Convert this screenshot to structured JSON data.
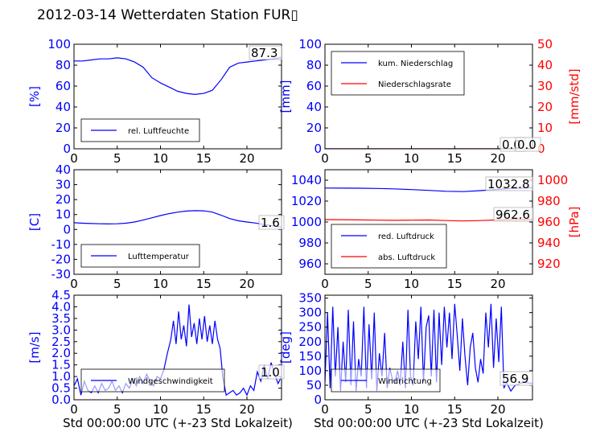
{
  "title": "2012-03-14 Wetterdaten Station FUR▯",
  "colors": {
    "left_axis": "#0000ff",
    "right_axis": "#ff0000",
    "series_blue": "#0000ff",
    "series_red": "#ff0000",
    "frame": "#000000"
  },
  "chart_data": [
    {
      "id": "humidity",
      "type": "line",
      "ylabel": "[%]",
      "xlim": [
        0,
        24
      ],
      "ylim": [
        0,
        100
      ],
      "xticks": [
        0,
        5,
        10,
        15,
        20
      ],
      "yticks": [
        0,
        20,
        40,
        60,
        80,
        100
      ],
      "legend_position": "lower-left",
      "legend_entries": [
        {
          "label": "rel. Luftfeuchte",
          "color": "#0000ff"
        }
      ],
      "value_label": "87.3",
      "series": [
        {
          "name": "rel. Luftfeuchte",
          "color": "#0000ff",
          "x": [
            0,
            1,
            2,
            3,
            4,
            5,
            6,
            7,
            8,
            9,
            10,
            11,
            12,
            13,
            14,
            15,
            16,
            17,
            18,
            19,
            20,
            21,
            22,
            23,
            24
          ],
          "y": [
            84,
            84,
            85,
            86,
            86,
            87,
            86,
            83,
            78,
            68,
            63,
            59,
            55,
            53,
            52,
            53,
            56,
            66,
            78,
            82,
            83,
            84,
            85,
            86,
            87.3
          ]
        }
      ]
    },
    {
      "id": "precip",
      "type": "line",
      "ylabel": "[mm]",
      "ylabel_right": "[mm/std]",
      "xlim": [
        0,
        24
      ],
      "ylim": [
        0,
        100
      ],
      "ylim_right": [
        0,
        50
      ],
      "xticks": [
        0,
        5,
        10,
        15,
        20
      ],
      "yticks": [
        0,
        20,
        40,
        60,
        80,
        100
      ],
      "yticks_right": [
        0,
        10,
        20,
        30,
        40,
        50
      ],
      "legend_position": "upper-left",
      "legend_entries": [
        {
          "label": "kum. Niederschlag",
          "color": "#0000ff"
        },
        {
          "label": "Niederschlagsrate",
          "color": "#ff0000"
        }
      ],
      "value_label": "0.0",
      "value_label_2": "0.0",
      "series": [
        {
          "name": "kum. Niederschlag",
          "color": "#0000ff",
          "axis": "left",
          "x": [
            0,
            24
          ],
          "y": [
            0,
            0
          ]
        },
        {
          "name": "Niederschlagsrate",
          "color": "#ff0000",
          "axis": "right",
          "x": [
            0,
            24
          ],
          "y": [
            0,
            0
          ]
        }
      ]
    },
    {
      "id": "temperature",
      "type": "line",
      "ylabel": "[C]",
      "xlim": [
        0,
        24
      ],
      "ylim": [
        -30,
        40
      ],
      "xticks": [
        0,
        5,
        10,
        15,
        20
      ],
      "yticks": [
        -30,
        -20,
        -10,
        0,
        10,
        20,
        30,
        40
      ],
      "legend_position": "lower-left",
      "legend_entries": [
        {
          "label": "Lufttemperatur",
          "color": "#0000ff"
        }
      ],
      "value_label": "1.6",
      "series": [
        {
          "name": "Lufttemperatur",
          "color": "#0000ff",
          "x": [
            0,
            1,
            2,
            3,
            4,
            5,
            6,
            7,
            8,
            9,
            10,
            11,
            12,
            13,
            14,
            15,
            16,
            17,
            18,
            19,
            20,
            21,
            22,
            23,
            24
          ],
          "y": [
            4.5,
            4.2,
            4.0,
            3.8,
            3.7,
            3.8,
            4.2,
            5.0,
            6.3,
            7.8,
            9.3,
            10.6,
            11.6,
            12.3,
            12.6,
            12.5,
            11.6,
            9.6,
            7.3,
            5.8,
            5.0,
            4.3,
            3.3,
            2.4,
            1.6
          ]
        }
      ]
    },
    {
      "id": "pressure",
      "type": "line",
      "ylabel_right": "[hPa]",
      "xlim": [
        0,
        24
      ],
      "ylim": [
        950,
        1050
      ],
      "ylim_right": [
        910,
        1010
      ],
      "xticks": [
        0,
        5,
        10,
        15,
        20
      ],
      "yticks": [
        960,
        980,
        1000,
        1020,
        1040
      ],
      "yticks_right": [
        920,
        940,
        960,
        980,
        1000
      ],
      "legend_position": "lower-left",
      "legend_entries": [
        {
          "label": "red. Luftdruck",
          "color": "#0000ff"
        },
        {
          "label": "abs. Luftdruck",
          "color": "#ff0000"
        }
      ],
      "value_label": "1032.8",
      "value_label_2": "962.6",
      "series": [
        {
          "name": "red. Luftdruck",
          "color": "#0000ff",
          "axis": "left",
          "x": [
            0,
            2,
            4,
            6,
            8,
            10,
            12,
            14,
            16,
            18,
            20,
            22,
            24
          ],
          "y": [
            1032.5,
            1032.4,
            1032.3,
            1032.1,
            1031.7,
            1031.0,
            1030.2,
            1029.4,
            1029.1,
            1030.0,
            1031.2,
            1032.2,
            1032.8
          ]
        },
        {
          "name": "abs. Luftdruck",
          "color": "#ff0000",
          "axis": "right",
          "x": [
            0,
            2,
            4,
            6,
            8,
            10,
            12,
            14,
            16,
            18,
            20,
            22,
            24
          ],
          "y": [
            962.3,
            962.2,
            962.0,
            961.8,
            961.6,
            961.8,
            961.9,
            961.4,
            961.0,
            961.4,
            962.0,
            962.4,
            962.6
          ]
        }
      ]
    },
    {
      "id": "windspeed",
      "type": "line",
      "ylabel": "[m/s]",
      "xlabel": "Std 00:00:00 UTC (+-23 Std Lokalzeit)",
      "xlim": [
        0,
        24
      ],
      "ylim": [
        0,
        4.5
      ],
      "xticks": [
        0,
        5,
        10,
        15,
        20
      ],
      "yticks": [
        0.0,
        0.5,
        1.0,
        1.5,
        2.0,
        2.5,
        3.0,
        3.5,
        4.0,
        4.5
      ],
      "legend_position": "lower-left",
      "legend_entries": [
        {
          "label": "Windgeschwindigkeit",
          "color": "#0000ff"
        }
      ],
      "value_label": "1.0",
      "series": [
        {
          "name": "Windgeschwindigkeit",
          "color": "#0000ff",
          "x": [
            0,
            0.4,
            0.8,
            1.2,
            1.6,
            2,
            2.4,
            2.8,
            3.2,
            3.6,
            4,
            4.4,
            4.8,
            5.2,
            5.6,
            6,
            6.4,
            6.8,
            7.2,
            7.6,
            8,
            8.4,
            8.8,
            9.2,
            9.6,
            10,
            10.4,
            10.8,
            11.2,
            11.5,
            11.8,
            12.1,
            12.4,
            12.7,
            13,
            13.3,
            13.6,
            13.9,
            14.2,
            14.5,
            14.8,
            15.1,
            15.4,
            15.7,
            16,
            16.3,
            16.6,
            16.9,
            17.2,
            17.6,
            18,
            18.4,
            18.8,
            19.2,
            19.6,
            20,
            20.4,
            20.8,
            21.2,
            21.6,
            22,
            22.4,
            22.8,
            23.2,
            23.6,
            24
          ],
          "y": [
            0.6,
            0.9,
            0.2,
            0.8,
            0.4,
            0.3,
            0.6,
            0.3,
            0.7,
            0.4,
            0.5,
            0.8,
            0.4,
            0.6,
            0.3,
            0.7,
            0.5,
            0.9,
            0.6,
            1.0,
            0.7,
            1.1,
            0.8,
            0.6,
            1.0,
            0.9,
            1.3,
            2.0,
            2.6,
            3.4,
            2.4,
            3.8,
            2.6,
            3.2,
            2.3,
            4.1,
            2.7,
            3.3,
            2.4,
            3.5,
            2.6,
            3.6,
            2.5,
            3.2,
            2.4,
            3.4,
            2.6,
            2.2,
            1.0,
            0.2,
            0.3,
            0.4,
            0.2,
            0.3,
            0.5,
            0.2,
            0.6,
            0.4,
            1.2,
            0.8,
            1.5,
            0.9,
            1.6,
            1.1,
            0.7,
            1.0
          ]
        }
      ]
    },
    {
      "id": "winddir",
      "type": "line",
      "ylabel": "[deg]",
      "xlabel": "Std 00:00:00 UTC (+-23 Std Lokalzeit)",
      "xlim": [
        0,
        24
      ],
      "ylim": [
        0,
        360
      ],
      "xticks": [
        0,
        5,
        10,
        15,
        20
      ],
      "yticks": [
        0,
        50,
        100,
        150,
        200,
        250,
        300,
        350
      ],
      "legend_position": "lower-left",
      "legend_entries": [
        {
          "label": "Windrichtung",
          "color": "#0000ff"
        }
      ],
      "value_label": "56.9",
      "series": [
        {
          "name": "Windrichtung",
          "color": "#0000ff",
          "x": [
            0,
            0.3,
            0.6,
            0.9,
            1.2,
            1.5,
            1.8,
            2.1,
            2.4,
            2.7,
            3,
            3.3,
            3.6,
            3.9,
            4.2,
            4.5,
            4.8,
            5.1,
            5.4,
            5.7,
            6,
            6.3,
            6.6,
            6.9,
            7.2,
            7.5,
            7.8,
            8.1,
            8.4,
            8.7,
            9,
            9.3,
            9.6,
            9.9,
            10.2,
            10.5,
            10.8,
            11.1,
            11.4,
            11.7,
            12,
            12.3,
            12.6,
            12.9,
            13.2,
            13.5,
            13.8,
            14.1,
            14.4,
            14.7,
            15,
            15.3,
            15.6,
            15.9,
            16.2,
            16.5,
            16.8,
            17.1,
            17.4,
            17.7,
            18,
            18.3,
            18.6,
            18.9,
            19.2,
            19.5,
            19.8,
            20.1,
            20.4,
            20.7,
            21.0,
            21.5,
            22,
            22.5,
            23,
            23.5,
            24
          ],
          "y": [
            60,
            300,
            40,
            320,
            80,
            250,
            30,
            200,
            60,
            310,
            50,
            270,
            30,
            140,
            80,
            320,
            40,
            260,
            70,
            300,
            30,
            160,
            80,
            230,
            40,
            110,
            70,
            60,
            100,
            50,
            200,
            40,
            310,
            80,
            50,
            270,
            140,
            320,
            60,
            250,
            290,
            80,
            310,
            60,
            300,
            120,
            320,
            180,
            300,
            140,
            330,
            220,
            100,
            280,
            150,
            50,
            180,
            230,
            110,
            60,
            140,
            90,
            300,
            180,
            330,
            110,
            280,
            130,
            320,
            40,
            60,
            30,
            50,
            55,
            60,
            58,
            56.9
          ]
        }
      ]
    }
  ]
}
